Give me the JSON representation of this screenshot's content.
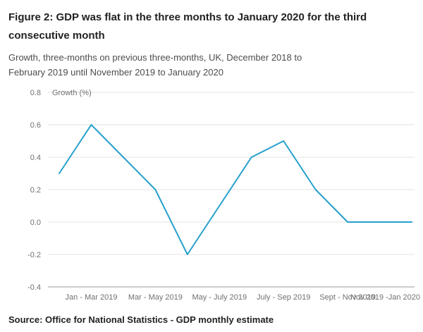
{
  "header": {
    "title": "Figure 2: GDP was flat in the three months to January 2020 for the third consecutive month",
    "subtitle": "Growth, three-months on previous three-months, UK, December 2018 to February 2019 until November 2019 to January 2020"
  },
  "chart_data": {
    "type": "line",
    "title": "",
    "xlabel": "",
    "ylabel": "Growth (%)",
    "ylim": [
      -0.4,
      0.8
    ],
    "y_tick_labels": [
      "0.8",
      "0.6",
      "0.4",
      "0.2",
      "0.0",
      "-0.2",
      "-0.4"
    ],
    "x_tick_labels": [
      "Jan - Mar 2019",
      "Mar - May 2019",
      "May - July 2019",
      "July - Sep 2019",
      "Sept - Nov 2019",
      "Nov 2019 -Jan 2020"
    ],
    "x_tick_point_indices": [
      1,
      3,
      5,
      7,
      9,
      11
    ],
    "x_description": "monthly rolling three-month periods from Dec 2018 - Feb 2019 to Nov 2019 - Jan 2020",
    "values": [
      0.3,
      0.6,
      0.4,
      0.2,
      -0.2,
      0.1,
      0.4,
      0.5,
      0.2,
      0.0,
      0.0,
      0.0
    ],
    "line_color": "#27A0CC",
    "grid": "light horizontal gridlines at each y tick, darker baseline at -0.4",
    "legend": "none"
  },
  "source": {
    "label": "Source: Office for National Statistics - GDP monthly estimate"
  }
}
